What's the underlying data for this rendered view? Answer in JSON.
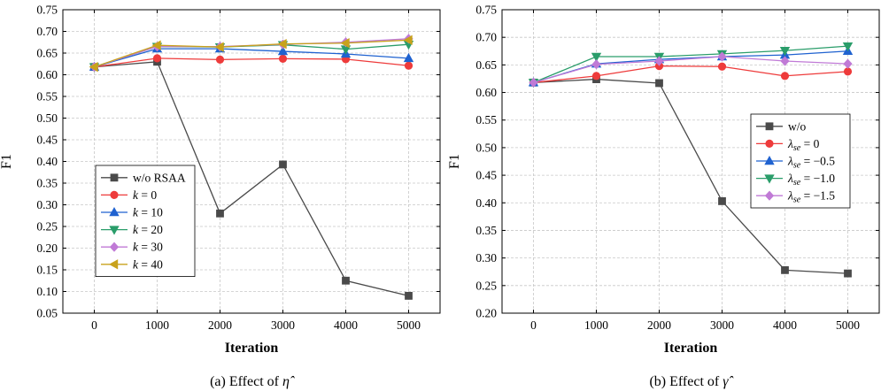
{
  "chart_data": [
    {
      "type": "line",
      "caption": "(a) Effect of",
      "caption_symbol": "η̂",
      "xlabel": "Iteration",
      "ylabel": "F1",
      "x": [
        0,
        1000,
        2000,
        3000,
        4000,
        5000
      ],
      "xticks": [
        "0",
        "1000",
        "2000",
        "3000",
        "4000",
        "5000"
      ],
      "xlim": [
        -500,
        5500
      ],
      "ylim": [
        0.05,
        0.75
      ],
      "yticks": [
        "0.05",
        "0.10",
        "0.15",
        "0.20",
        "0.25",
        "0.30",
        "0.35",
        "0.40",
        "0.45",
        "0.50",
        "0.55",
        "0.60",
        "0.65",
        "0.70",
        "0.75"
      ],
      "grid": true,
      "legend_position": "lower-left",
      "series": [
        {
          "name": "w/o RSAA",
          "color": "#4a4a4a",
          "marker": "square",
          "values": [
            0.618,
            0.63,
            0.28,
            0.393,
            0.125,
            0.09
          ]
        },
        {
          "name": "k = 0",
          "var": "k",
          "rest": " = 0",
          "color": "#ee3b3b",
          "marker": "circle",
          "values": [
            0.618,
            0.638,
            0.635,
            0.637,
            0.636,
            0.621
          ]
        },
        {
          "name": "k = 10",
          "var": "k",
          "rest": " = 10",
          "color": "#1f62d0",
          "marker": "triangle-up",
          "values": [
            0.618,
            0.66,
            0.66,
            0.654,
            0.648,
            0.638
          ]
        },
        {
          "name": "k = 20",
          "var": "k",
          "rest": " = 20",
          "color": "#2a9d6a",
          "marker": "triangle-down",
          "values": [
            0.618,
            0.665,
            0.664,
            0.669,
            0.659,
            0.67
          ]
        },
        {
          "name": "k = 30",
          "var": "k",
          "rest": " = 30",
          "color": "#c07ad6",
          "marker": "diamond",
          "values": [
            0.618,
            0.665,
            0.665,
            0.67,
            0.675,
            0.683
          ]
        },
        {
          "name": "k = 40",
          "var": "k",
          "rest": " = 40",
          "color": "#c8a21c",
          "marker": "triangle-left",
          "values": [
            0.618,
            0.668,
            0.664,
            0.671,
            0.673,
            0.68
          ]
        }
      ]
    },
    {
      "type": "line",
      "caption": "(b) Effect of",
      "caption_symbol": "γ̂",
      "xlabel": "Iteration",
      "ylabel": "F1",
      "x": [
        0,
        1000,
        2000,
        3000,
        4000,
        5000
      ],
      "xticks": [
        "0",
        "1000",
        "2000",
        "3000",
        "4000",
        "5000"
      ],
      "xlim": [
        -500,
        5500
      ],
      "ylim": [
        0.2,
        0.75
      ],
      "yticks": [
        "0.20",
        "0.25",
        "0.30",
        "0.35",
        "0.40",
        "0.45",
        "0.50",
        "0.55",
        "0.60",
        "0.65",
        "0.70",
        "0.75"
      ],
      "grid": true,
      "legend_position": "center-right",
      "series": [
        {
          "name": "w/o",
          "color": "#4a4a4a",
          "marker": "square",
          "values": [
            0.618,
            0.624,
            0.617,
            0.403,
            0.278,
            0.272
          ]
        },
        {
          "name": "λse = 0",
          "var": "λ",
          "sub": "se",
          "rest": " = 0",
          "color": "#ee3b3b",
          "marker": "circle",
          "values": [
            0.618,
            0.63,
            0.648,
            0.647,
            0.63,
            0.638
          ]
        },
        {
          "name": "λse = −0.5",
          "var": "λ",
          "sub": "se",
          "rest": " = −0.5",
          "color": "#1f62d0",
          "marker": "triangle-up",
          "values": [
            0.618,
            0.652,
            0.66,
            0.665,
            0.668,
            0.675
          ]
        },
        {
          "name": "λse = −1.0",
          "var": "λ",
          "sub": "se",
          "rest": " = −1.0",
          "color": "#2a9d6a",
          "marker": "triangle-down",
          "values": [
            0.618,
            0.665,
            0.665,
            0.67,
            0.676,
            0.684
          ]
        },
        {
          "name": "λse = −1.5",
          "var": "λ",
          "sub": "se",
          "rest": " = −1.5",
          "color": "#c07ad6",
          "marker": "diamond",
          "values": [
            0.618,
            0.651,
            0.657,
            0.665,
            0.657,
            0.652
          ]
        }
      ]
    }
  ]
}
